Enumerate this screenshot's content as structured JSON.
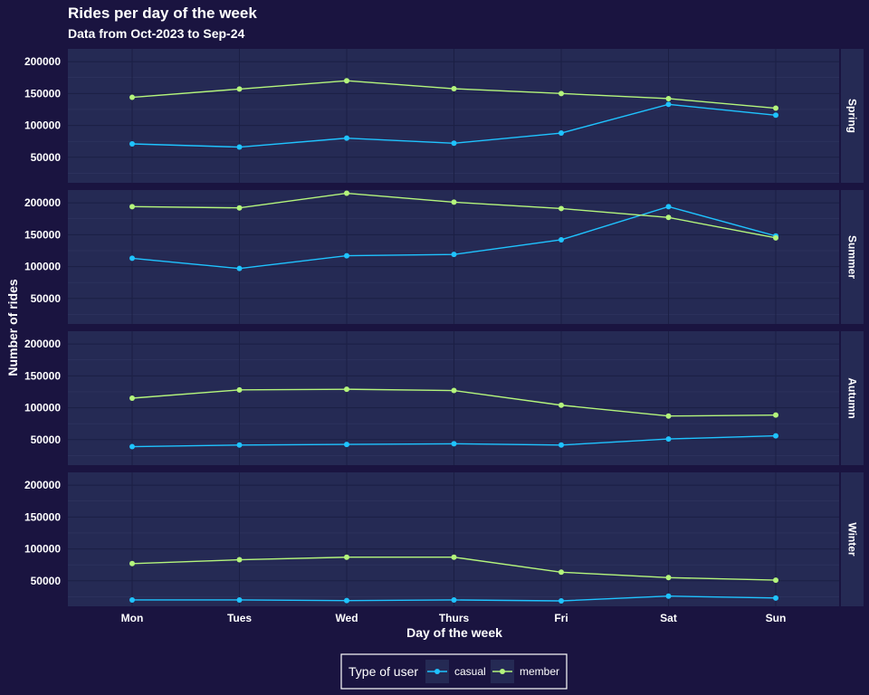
{
  "chart_data": {
    "type": "line",
    "title": "Rides per day of the week",
    "subtitle": "Data from Oct-2023 to Sep-24",
    "xlabel": "Day of the week",
    "ylabel": "Number of rides",
    "categories": [
      "Mon",
      "Tues",
      "Wed",
      "Thurs",
      "Fri",
      "Sat",
      "Sun"
    ],
    "ylim": [
      10000,
      220000
    ],
    "yticks": [
      50000,
      100000,
      150000,
      200000
    ],
    "grid": true,
    "legend": {
      "title": "Type of user",
      "position": "bottom",
      "entries": [
        "casual",
        "member"
      ]
    },
    "colors": {
      "casual": "#1fc3ff",
      "member": "#b4f57c"
    },
    "facets": [
      {
        "label": "Spring",
        "series": [
          {
            "name": "casual",
            "values": [
              71000,
              66000,
              80000,
              72000,
              88000,
              133000,
              116000
            ]
          },
          {
            "name": "member",
            "values": [
              144000,
              157000,
              170000,
              157500,
              150000,
              142000,
              127000
            ]
          }
        ]
      },
      {
        "label": "Summer",
        "series": [
          {
            "name": "casual",
            "values": [
              113000,
              97000,
              117000,
              119000,
              142000,
              194000,
              148000
            ]
          },
          {
            "name": "member",
            "values": [
              194000,
              192000,
              215000,
              201000,
              191000,
              177000,
              145000
            ]
          }
        ]
      },
      {
        "label": "Autumn",
        "series": [
          {
            "name": "casual",
            "values": [
              39000,
              41500,
              42500,
              43500,
              41500,
              51000,
              56000
            ]
          },
          {
            "name": "member",
            "values": [
              115000,
              128000,
              129000,
              127000,
              104000,
              87000,
              88500
            ]
          }
        ]
      },
      {
        "label": "Winter",
        "series": [
          {
            "name": "casual",
            "values": [
              20000,
              20000,
              19000,
              20000,
              18500,
              26000,
              23000
            ]
          },
          {
            "name": "member",
            "values": [
              77000,
              83000,
              87000,
              87000,
              63500,
              55000,
              51000
            ]
          }
        ]
      }
    ]
  }
}
